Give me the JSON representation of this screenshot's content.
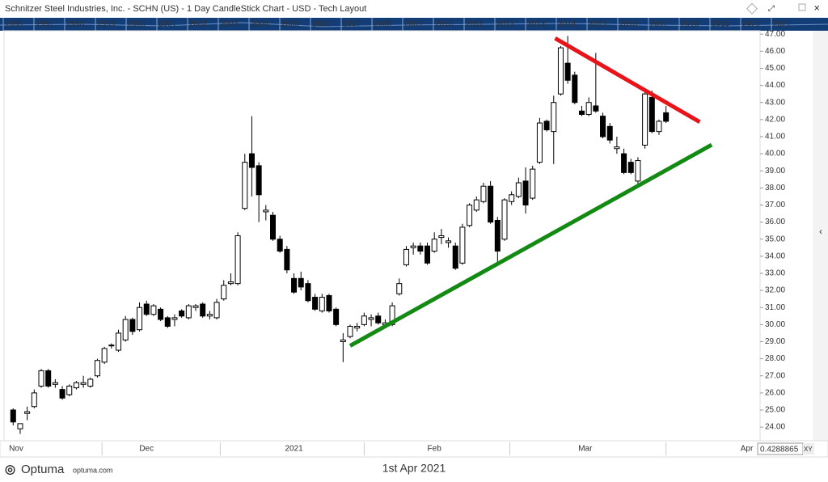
{
  "header": {
    "title": "Schnitzer Steel Industries, Inc.  - SCHN (US) - 1 Day CandleStick Chart - USD - Tech Layout"
  },
  "overview_years": [
    "1995",
    "1997",
    "1998",
    "1999",
    "2000",
    "2001",
    "2002",
    "2003",
    "2004",
    "2005",
    "2006",
    "2007",
    "2008",
    "2009",
    "2010",
    "2011",
    "2012",
    "2013",
    "2014",
    "2015",
    "2016",
    "2017",
    "2018",
    "2019",
    "2020",
    "2021"
  ],
  "chart_data": {
    "type": "candlestick",
    "open": [
      25.0,
      23.9,
      24.8,
      25.2,
      26.4,
      27.3,
      26.5,
      26.2,
      25.9,
      26.3,
      26.5,
      26.4,
      27.0,
      27.8,
      28.8,
      28.5,
      29.1,
      30.3,
      29.7,
      31.2,
      30.6,
      30.9,
      30.4,
      30.3,
      30.8,
      30.4,
      31.0,
      31.2,
      30.5,
      30.4,
      31.5,
      32.4,
      32.4,
      36.8,
      40.0,
      39.3,
      36.6,
      36.4,
      35.0,
      34.4,
      32.7,
      32.7,
      32.4,
      31.6,
      30.8,
      31.7,
      30.9,
      29.0,
      29.3,
      29.8,
      30.0,
      30.3,
      30.5,
      30.0,
      30.0,
      31.8,
      33.5,
      34.5,
      34.6,
      34.6,
      34.3,
      35.1,
      34.8,
      34.6,
      33.6,
      35.8,
      36.7,
      37.2,
      38.1,
      36.1,
      35.0,
      37.2,
      37.5,
      38.4,
      37.4,
      39.5,
      41.9,
      41.3,
      43.5,
      45.3,
      44.6,
      42.5,
      42.3,
      42.8,
      42.2,
      41.6,
      40.3,
      40.0,
      39.5,
      38.4,
      40.5,
      43.3,
      41.3,
      42.4
    ],
    "high": [
      25.1,
      24.2,
      25.2,
      26.2,
      27.4,
      27.4,
      26.8,
      26.4,
      26.5,
      26.7,
      27.0,
      26.9,
      28.0,
      28.7,
      28.9,
      29.7,
      30.5,
      30.4,
      31.3,
      31.4,
      31.2,
      31.0,
      30.5,
      30.6,
      30.9,
      31.2,
      31.2,
      31.3,
      30.8,
      31.5,
      32.6,
      33.0,
      35.4,
      40.0,
      42.2,
      39.5,
      37.0,
      36.6,
      35.2,
      34.6,
      33.0,
      33.1,
      32.6,
      31.8,
      31.8,
      31.8,
      31.0,
      29.5,
      30.0,
      30.1,
      30.7,
      30.6,
      30.7,
      30.3,
      31.3,
      32.7,
      34.6,
      34.8,
      34.8,
      34.8,
      35.4,
      35.6,
      35.1,
      34.8,
      35.9,
      37.1,
      37.5,
      38.3,
      38.4,
      36.3,
      37.4,
      37.8,
      38.6,
      39.2,
      39.3,
      42.1,
      42.0,
      43.4,
      46.3,
      46.9,
      44.8,
      42.8,
      43.3,
      45.9,
      42.4,
      41.8,
      41.0,
      40.3,
      39.7,
      39.8,
      43.6,
      43.7,
      42.0,
      42.8
    ],
    "low": [
      24.1,
      23.6,
      24.4,
      25.1,
      26.3,
      26.3,
      26.3,
      25.6,
      25.8,
      26.2,
      26.3,
      26.3,
      26.9,
      27.7,
      28.6,
      28.4,
      29.0,
      29.4,
      29.6,
      30.5,
      30.5,
      30.2,
      29.8,
      29.9,
      30.4,
      30.3,
      30.8,
      30.4,
      30.3,
      30.3,
      31.4,
      32.3,
      32.3,
      36.7,
      37.5,
      36.0,
      36.1,
      34.9,
      34.2,
      33.0,
      31.8,
      32.0,
      31.3,
      30.8,
      30.7,
      30.7,
      29.9,
      27.8,
      29.2,
      29.6,
      29.9,
      29.9,
      30.0,
      29.8,
      29.9,
      31.7,
      33.4,
      34.1,
      34.1,
      33.5,
      34.2,
      34.7,
      34.5,
      33.2,
      33.5,
      35.7,
      36.6,
      37.1,
      35.9,
      33.6,
      34.9,
      37.0,
      37.4,
      36.5,
      37.3,
      39.4,
      41.3,
      39.4,
      43.4,
      44.1,
      42.9,
      42.2,
      42.2,
      42.4,
      40.9,
      40.6,
      40.0,
      38.8,
      38.8,
      38.2,
      40.3,
      41.2,
      41.1,
      41.8
    ],
    "close": [
      24.3,
      24.2,
      24.9,
      26.0,
      27.3,
      26.4,
      26.6,
      25.7,
      26.4,
      26.6,
      26.6,
      26.8,
      27.9,
      28.6,
      28.8,
      29.5,
      30.3,
      29.6,
      31.0,
      30.6,
      31.1,
      30.3,
      29.9,
      30.4,
      30.5,
      31.1,
      31.1,
      30.5,
      30.6,
      31.3,
      32.3,
      32.5,
      35.2,
      39.5,
      39.2,
      37.6,
      36.7,
      35.0,
      34.3,
      33.2,
      31.9,
      32.2,
      31.4,
      30.9,
      31.6,
      30.8,
      30.0,
      29.1,
      29.9,
      29.9,
      30.5,
      30.4,
      30.1,
      30.1,
      31.1,
      32.4,
      34.4,
      34.6,
      34.3,
      33.6,
      35.0,
      35.2,
      34.9,
      33.3,
      35.7,
      37.0,
      37.3,
      38.1,
      36.0,
      34.3,
      37.3,
      37.6,
      38.3,
      37.0,
      39.1,
      41.8,
      41.4,
      43.0,
      46.2,
      44.3,
      43.0,
      42.3,
      43.0,
      42.5,
      41.0,
      40.8,
      40.4,
      38.9,
      38.9,
      39.6,
      43.5,
      41.3,
      41.9,
      41.9
    ],
    "up_color": "#ffffff",
    "down_color": "#000000",
    "xlim": [
      -1.3,
      106.4
    ],
    "xticks": [
      {
        "value": -0.6,
        "label": "Nov"
      },
      {
        "value": 19,
        "label": "Dec"
      },
      {
        "value": 40,
        "label": "2021"
      },
      {
        "value": 60,
        "label": "Feb"
      },
      {
        "value": 81.5,
        "label": "Mar"
      },
      {
        "value": 104.5,
        "label": "Apr"
      }
    ],
    "ylim": [
      23.2,
      47.2
    ],
    "yticks": [
      {
        "value": 24,
        "label": "24.00"
      },
      {
        "value": 25,
        "label": "25.00"
      },
      {
        "value": 26,
        "label": "26.00"
      },
      {
        "value": 27,
        "label": "27.00"
      },
      {
        "value": 28,
        "label": "28.00"
      },
      {
        "value": 29,
        "label": "29.00"
      },
      {
        "value": 30,
        "label": "30.00"
      },
      {
        "value": 31,
        "label": "31.00"
      },
      {
        "value": 32,
        "label": "32.00"
      },
      {
        "value": 33,
        "label": "33.00"
      },
      {
        "value": 34,
        "label": "34.00"
      },
      {
        "value": 35,
        "label": "35.00"
      },
      {
        "value": 36,
        "label": "36.00"
      },
      {
        "value": 37,
        "label": "37.00"
      },
      {
        "value": 38,
        "label": "38.00"
      },
      {
        "value": 39,
        "label": "39.00"
      },
      {
        "value": 40,
        "label": "40.00"
      },
      {
        "value": 41,
        "label": "41.00"
      },
      {
        "value": 42,
        "label": "42.00"
      },
      {
        "value": 43,
        "label": "43.00"
      },
      {
        "value": 44,
        "label": "44.00"
      },
      {
        "value": 45,
        "label": "45.00"
      },
      {
        "value": 46,
        "label": "46.00"
      },
      {
        "value": 47,
        "label": "47.00"
      }
    ],
    "trendlines": [
      {
        "color": "#e8141a",
        "x": [
          77.2,
          97.8
        ],
        "y": [
          46.76,
          41.86
        ]
      },
      {
        "color": "#138a13",
        "x": [
          48.0,
          99.5
        ],
        "y": [
          28.76,
          40.52
        ]
      }
    ]
  },
  "footer": {
    "brand": "Optuma",
    "site": "optuma.com",
    "date": "1st Apr 2021",
    "cursor_value": "0.4288865",
    "mode": "XY"
  }
}
